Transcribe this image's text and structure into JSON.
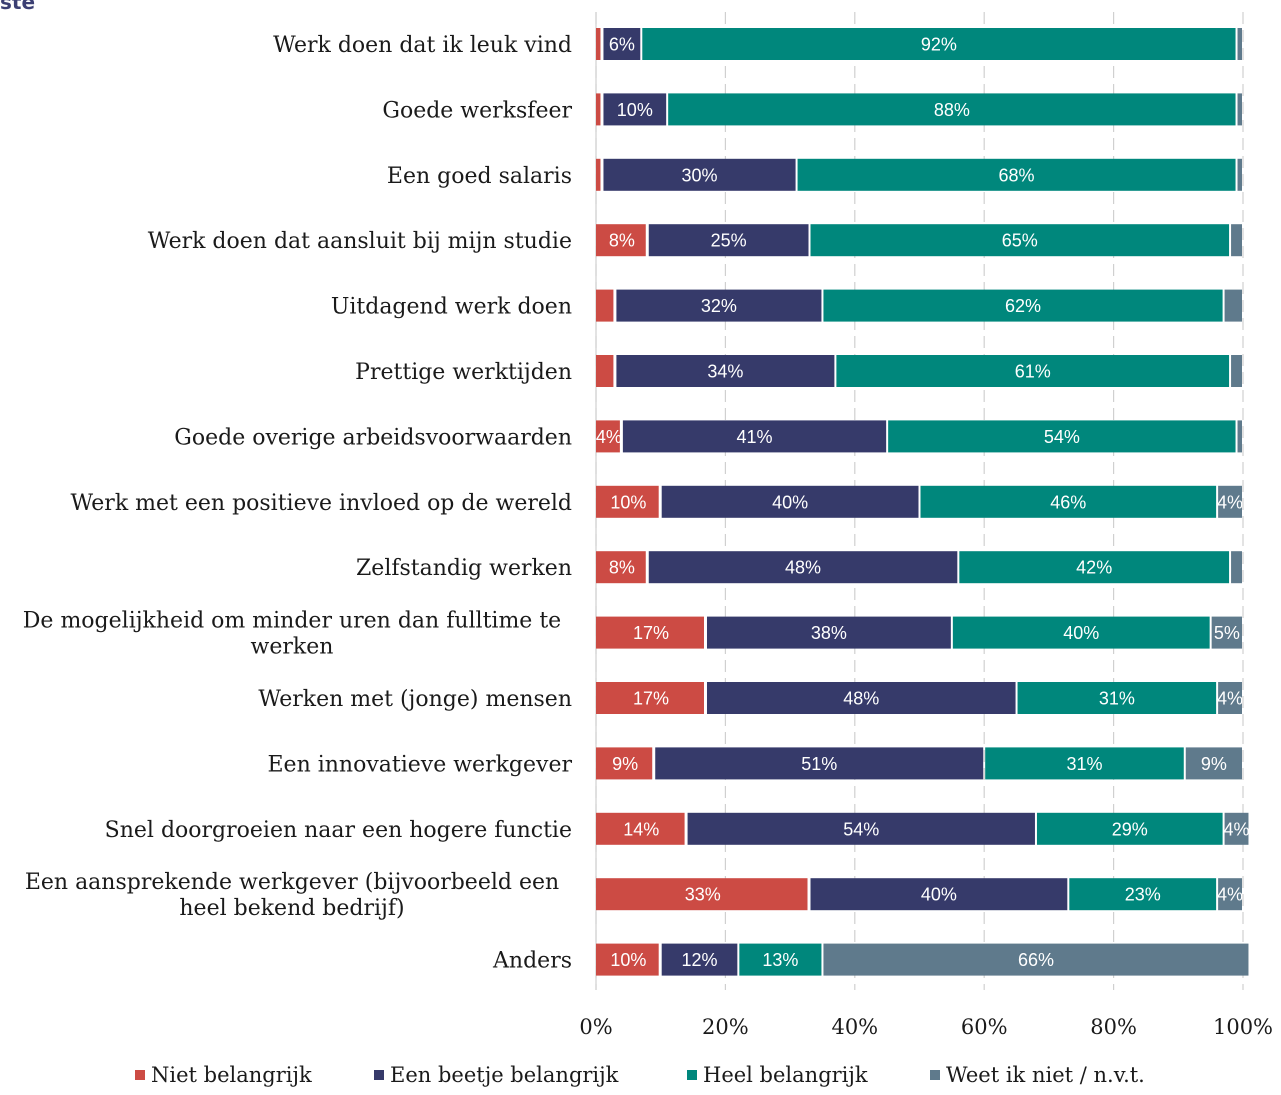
{
  "title_fragment": "ste",
  "chart_data": {
    "type": "bar",
    "orientation": "horizontal",
    "stacked": true,
    "normalized": true,
    "categories": [
      "Werk doen dat ik leuk vind",
      "Goede werksfeer",
      "Een goed salaris",
      "Werk doen dat aansluit bij mijn studie",
      "Uitdagend werk doen",
      "Prettige werktijden",
      "Goede overige arbeidsvoorwaarden",
      "Werk met een positieve invloed op de wereld",
      "Zelfstandig werken",
      "De mogelijkheid om minder uren dan fulltime te werken",
      "Werken met (jonge) mensen",
      "Een innovatieve werkgever",
      "Snel doorgroeien naar een hogere functie",
      "Een aansprekende werkgever (bijvoorbeeld een heel bekend bedrijf)",
      "Anders"
    ],
    "category_lines": [
      [
        "Werk doen dat ik leuk vind"
      ],
      [
        "Goede werksfeer"
      ],
      [
        "Een goed salaris"
      ],
      [
        "Werk doen dat aansluit bij mijn studie"
      ],
      [
        "Uitdagend werk doen"
      ],
      [
        "Prettige werktijden"
      ],
      [
        "Goede overige arbeidsvoorwaarden"
      ],
      [
        "Werk met een positieve invloed op de wereld"
      ],
      [
        "Zelfstandig werken"
      ],
      [
        "De mogelijkheid om minder uren dan fulltime te",
        "werken"
      ],
      [
        "Werken met (jonge) mensen"
      ],
      [
        "Een innovatieve werkgever"
      ],
      [
        "Snel doorgroeien naar een hogere functie"
      ],
      [
        "Een aansprekende werkgever (bijvoorbeeld een",
        "heel bekend bedrijf)"
      ],
      [
        "Anders"
      ]
    ],
    "series": [
      {
        "name": "Niet belangrijk",
        "color": "#cc4b44",
        "values": [
          1,
          1,
          1,
          8,
          3,
          3,
          4,
          10,
          8,
          17,
          17,
          9,
          14,
          33,
          10
        ],
        "labels": [
          "",
          "",
          "",
          "8%",
          "",
          "",
          "4%",
          "10%",
          "8%",
          "17%",
          "17%",
          "9%",
          "14%",
          "33%",
          "10%"
        ]
      },
      {
        "name": "Een beetje belangrijk",
        "color": "#363a6a",
        "values": [
          6,
          10,
          30,
          25,
          32,
          34,
          41,
          40,
          48,
          38,
          48,
          51,
          54,
          40,
          12
        ],
        "labels": [
          "6%",
          "10%",
          "30%",
          "25%",
          "32%",
          "34%",
          "41%",
          "40%",
          "48%",
          "38%",
          "48%",
          "51%",
          "54%",
          "40%",
          "12%"
        ]
      },
      {
        "name": "Heel belangrijk",
        "color": "#00877c",
        "values": [
          92,
          88,
          68,
          65,
          62,
          61,
          54,
          46,
          42,
          40,
          31,
          31,
          29,
          23,
          13
        ],
        "labels": [
          "92%",
          "88%",
          "68%",
          "65%",
          "62%",
          "61%",
          "54%",
          "46%",
          "42%",
          "40%",
          "31%",
          "31%",
          "29%",
          "23%",
          "13%"
        ]
      },
      {
        "name": "Weet ik niet / n.v.t.",
        "color": "#5f7a8c",
        "values": [
          1,
          1,
          1,
          2,
          3,
          2,
          1,
          4,
          2,
          5,
          4,
          9,
          4,
          4,
          66
        ],
        "labels": [
          "",
          "",
          "",
          "",
          "",
          "",
          "",
          "4%",
          "",
          "5%",
          "4%",
          "9%",
          "4%",
          "4%",
          "66%"
        ]
      }
    ],
    "xlim": [
      0,
      100
    ],
    "x_ticks": [
      "0%",
      "20%",
      "40%",
      "60%",
      "80%",
      "100%"
    ],
    "grid": true,
    "grid_style": "dashed vertical",
    "legend_position": "bottom"
  }
}
